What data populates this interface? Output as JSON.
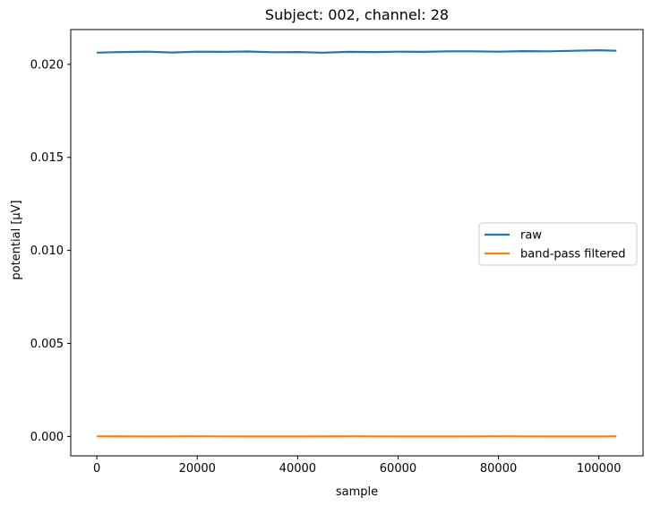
{
  "chart_data": {
    "type": "line",
    "title": "Subject: 002, channel: 28",
    "xlabel": "sample",
    "ylabel": "potential [µV]",
    "xlim": [
      -5200,
      108800
    ],
    "ylim": [
      -0.00104,
      0.02187
    ],
    "xticks": [
      {
        "value": 0,
        "label": "0"
      },
      {
        "value": 20000,
        "label": "20000"
      },
      {
        "value": 40000,
        "label": "40000"
      },
      {
        "value": 60000,
        "label": "60000"
      },
      {
        "value": 80000,
        "label": "80000"
      },
      {
        "value": 100000,
        "label": "100000"
      }
    ],
    "yticks": [
      {
        "value": 0.0,
        "label": "0.000"
      },
      {
        "value": 0.005,
        "label": "0.005"
      },
      {
        "value": 0.01,
        "label": "0.010"
      },
      {
        "value": 0.015,
        "label": "0.015"
      },
      {
        "value": 0.02,
        "label": "0.020"
      }
    ],
    "grid": false,
    "legend_position": "center-right",
    "series": [
      {
        "name": "raw",
        "color": "#1f77b4",
        "x": [
          0,
          5000,
          10000,
          15000,
          20000,
          25000,
          30000,
          35000,
          40000,
          45000,
          50000,
          55000,
          60000,
          65000,
          70000,
          75000,
          80000,
          85000,
          90000,
          95000,
          100000,
          103500
        ],
        "y": [
          0.02063,
          0.02066,
          0.02068,
          0.02064,
          0.02068,
          0.02067,
          0.02069,
          0.02065,
          0.02066,
          0.02063,
          0.02067,
          0.02066,
          0.02068,
          0.02067,
          0.0207,
          0.0207,
          0.02068,
          0.02071,
          0.0207,
          0.02073,
          0.02076,
          0.02073
        ]
      },
      {
        "name": "band-pass filtered",
        "color": "#ff7f0e",
        "x": [
          0,
          10000,
          20000,
          30000,
          40000,
          50000,
          60000,
          70000,
          80000,
          90000,
          100000,
          103500
        ],
        "y": [
          1e-05,
          0.0,
          1e-05,
          0.0,
          0.0,
          1e-05,
          0.0,
          0.0,
          1e-05,
          0.0,
          0.0,
          1e-05
        ]
      }
    ]
  }
}
